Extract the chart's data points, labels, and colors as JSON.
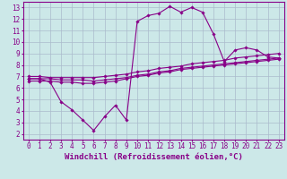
{
  "xlabel": "Windchill (Refroidissement éolien,°C)",
  "bg_color": "#cce8e8",
  "line_color": "#880088",
  "grid_color": "#aabbcc",
  "xlim": [
    -0.5,
    23.5
  ],
  "ylim": [
    1.5,
    13.5
  ],
  "xticks": [
    0,
    1,
    2,
    3,
    4,
    5,
    6,
    7,
    8,
    9,
    10,
    11,
    12,
    13,
    14,
    15,
    16,
    17,
    18,
    19,
    20,
    21,
    22,
    23
  ],
  "yticks": [
    2,
    3,
    4,
    5,
    6,
    7,
    8,
    9,
    10,
    11,
    12,
    13
  ],
  "s1_x": [
    0,
    1,
    2,
    3,
    4,
    5,
    6,
    7,
    8,
    9,
    10,
    11,
    12,
    13,
    14,
    15,
    16,
    17,
    18,
    19,
    20,
    21,
    22,
    23
  ],
  "s1_y": [
    6.8,
    6.8,
    6.5,
    4.8,
    4.1,
    3.2,
    2.3,
    3.5,
    4.5,
    3.2,
    11.8,
    12.3,
    12.5,
    13.1,
    12.6,
    13.0,
    12.6,
    10.7,
    8.3,
    9.3,
    9.5,
    9.3,
    8.7,
    8.6
  ],
  "s2_x": [
    0,
    1,
    2,
    3,
    4,
    5,
    6,
    7,
    8,
    9,
    10,
    11,
    12,
    13,
    14,
    15,
    16,
    17,
    18,
    19,
    20,
    21,
    22,
    23
  ],
  "s2_y": [
    7.0,
    7.0,
    6.9,
    6.9,
    6.9,
    6.9,
    6.9,
    7.0,
    7.1,
    7.2,
    7.4,
    7.5,
    7.7,
    7.8,
    7.9,
    8.1,
    8.2,
    8.3,
    8.4,
    8.6,
    8.7,
    8.8,
    8.9,
    9.0
  ],
  "s3_x": [
    0,
    1,
    2,
    3,
    4,
    5,
    6,
    7,
    8,
    9,
    10,
    11,
    12,
    13,
    14,
    15,
    16,
    17,
    18,
    19,
    20,
    21,
    22,
    23
  ],
  "s3_y": [
    6.8,
    6.8,
    6.8,
    6.7,
    6.7,
    6.7,
    6.6,
    6.7,
    6.8,
    6.9,
    7.1,
    7.2,
    7.4,
    7.5,
    7.7,
    7.8,
    7.9,
    8.0,
    8.1,
    8.2,
    8.3,
    8.4,
    8.5,
    8.6
  ],
  "s4_x": [
    0,
    1,
    2,
    3,
    4,
    5,
    6,
    7,
    8,
    9,
    10,
    11,
    12,
    13,
    14,
    15,
    16,
    17,
    18,
    19,
    20,
    21,
    22,
    23
  ],
  "s4_y": [
    6.6,
    6.6,
    6.6,
    6.5,
    6.5,
    6.4,
    6.4,
    6.5,
    6.6,
    6.8,
    7.0,
    7.1,
    7.3,
    7.4,
    7.6,
    7.7,
    7.8,
    7.9,
    8.0,
    8.1,
    8.2,
    8.3,
    8.4,
    8.5
  ],
  "marker": "D",
  "markersize": 1.8,
  "linewidth": 0.8,
  "xlabel_fontsize": 6.5,
  "tick_fontsize": 5.5
}
